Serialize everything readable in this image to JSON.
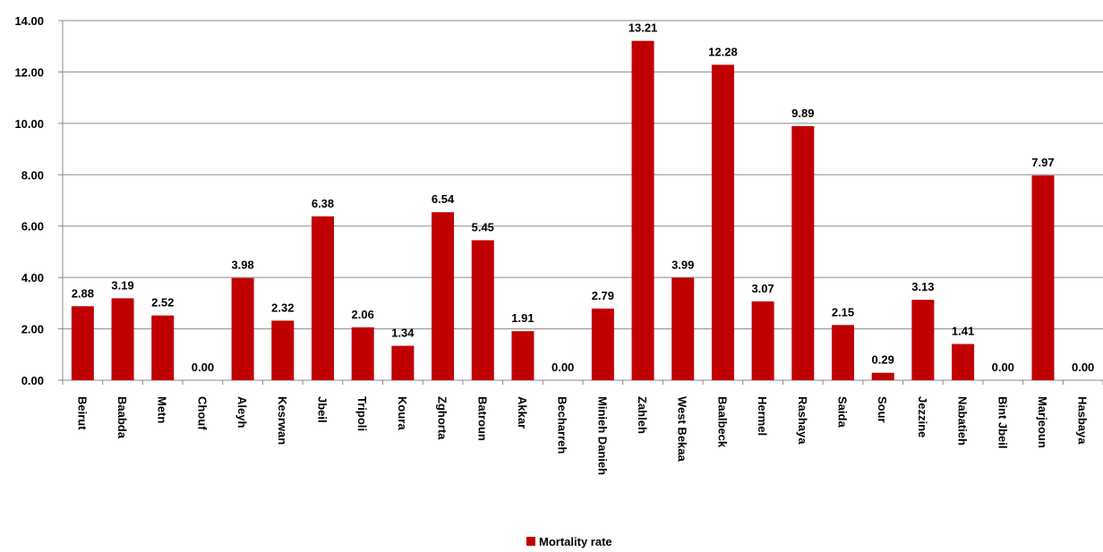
{
  "chart_data": {
    "type": "bar",
    "title": "",
    "xlabel": "",
    "ylabel": "",
    "ylim": [
      0,
      14
    ],
    "yticks": [
      "0.00",
      "2.00",
      "4.00",
      "6.00",
      "8.00",
      "10.00",
      "12.00",
      "14.00"
    ],
    "grid": "horizontal",
    "legend_position": "bottom",
    "bar_color": "#C00000",
    "categories": [
      "Beirut",
      "Baabda",
      "Metn",
      "Chouf",
      "Aleyh",
      "Kesrwan",
      "Jbeil",
      "Tripoli",
      "Koura",
      "Zghorta",
      "Batroun",
      "Akkar",
      "Becharreh",
      "Minieh Danieh",
      "Zahleh",
      "West Bekaa",
      "Baalbeck",
      "Hermel",
      "Rashaya",
      "Saida",
      "Sour",
      "Jezzine",
      "Nabatieh",
      "Bint Jbeil",
      "Marjeoun",
      "Hasbaya"
    ],
    "series": [
      {
        "name": "Mortality rate",
        "values": [
          2.88,
          3.19,
          2.52,
          0.0,
          3.98,
          2.32,
          6.38,
          2.06,
          1.34,
          6.54,
          5.45,
          1.91,
          0.0,
          2.79,
          13.21,
          3.99,
          12.28,
          3.07,
          9.89,
          2.15,
          0.29,
          3.13,
          1.41,
          0.0,
          7.97,
          0.0
        ],
        "labels": [
          "2.88",
          "3.19",
          "2.52",
          "0.00",
          "3.98",
          "2.32",
          "6.38",
          "2.06",
          "1.34",
          "6.54",
          "5.45",
          "1.91",
          "0.00",
          "2.79",
          "13.21",
          "3.99",
          "12.28",
          "3.07",
          "9.89",
          "2.15",
          "0.29",
          "3.13",
          "1.41",
          "0.00",
          "7.97",
          "0.00"
        ]
      }
    ]
  }
}
